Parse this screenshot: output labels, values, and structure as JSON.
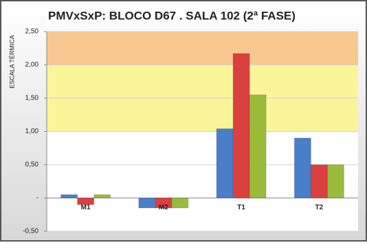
{
  "chart_data": {
    "type": "bar",
    "title": "PMVxSxP: BLOCO D67 . SALA 102 (2ª FASE)",
    "y_label": "ESCALA TÉRMICA",
    "categories": [
      "M1",
      "M2",
      "T1",
      "T2"
    ],
    "series": [
      {
        "color": "#4a7ec9",
        "values": [
          0.05,
          -0.15,
          1.04,
          0.9
        ]
      },
      {
        "color": "#d9403f",
        "values": [
          -0.1,
          -0.15,
          2.17,
          0.5
        ]
      },
      {
        "color": "#9bbb3b",
        "values": [
          0.05,
          -0.15,
          1.55,
          0.5
        ]
      }
    ],
    "ylim": [
      -0.5,
      2.5
    ],
    "yticks": [
      {
        "value": -0.5,
        "label": "-0,50"
      },
      {
        "value": 0,
        "label": "-"
      },
      {
        "value": 0.5,
        "label": "0,50"
      },
      {
        "value": 1,
        "label": "1,00"
      },
      {
        "value": 1.5,
        "label": "1,50"
      },
      {
        "value": 2,
        "label": "2,00"
      },
      {
        "value": 2.5,
        "label": "2,50"
      }
    ],
    "bands": [
      {
        "from": 1,
        "to": 2,
        "color": "#fbf59a"
      },
      {
        "from": 2,
        "to": 2.5,
        "color": "#f8c890"
      }
    ],
    "grid": true
  }
}
